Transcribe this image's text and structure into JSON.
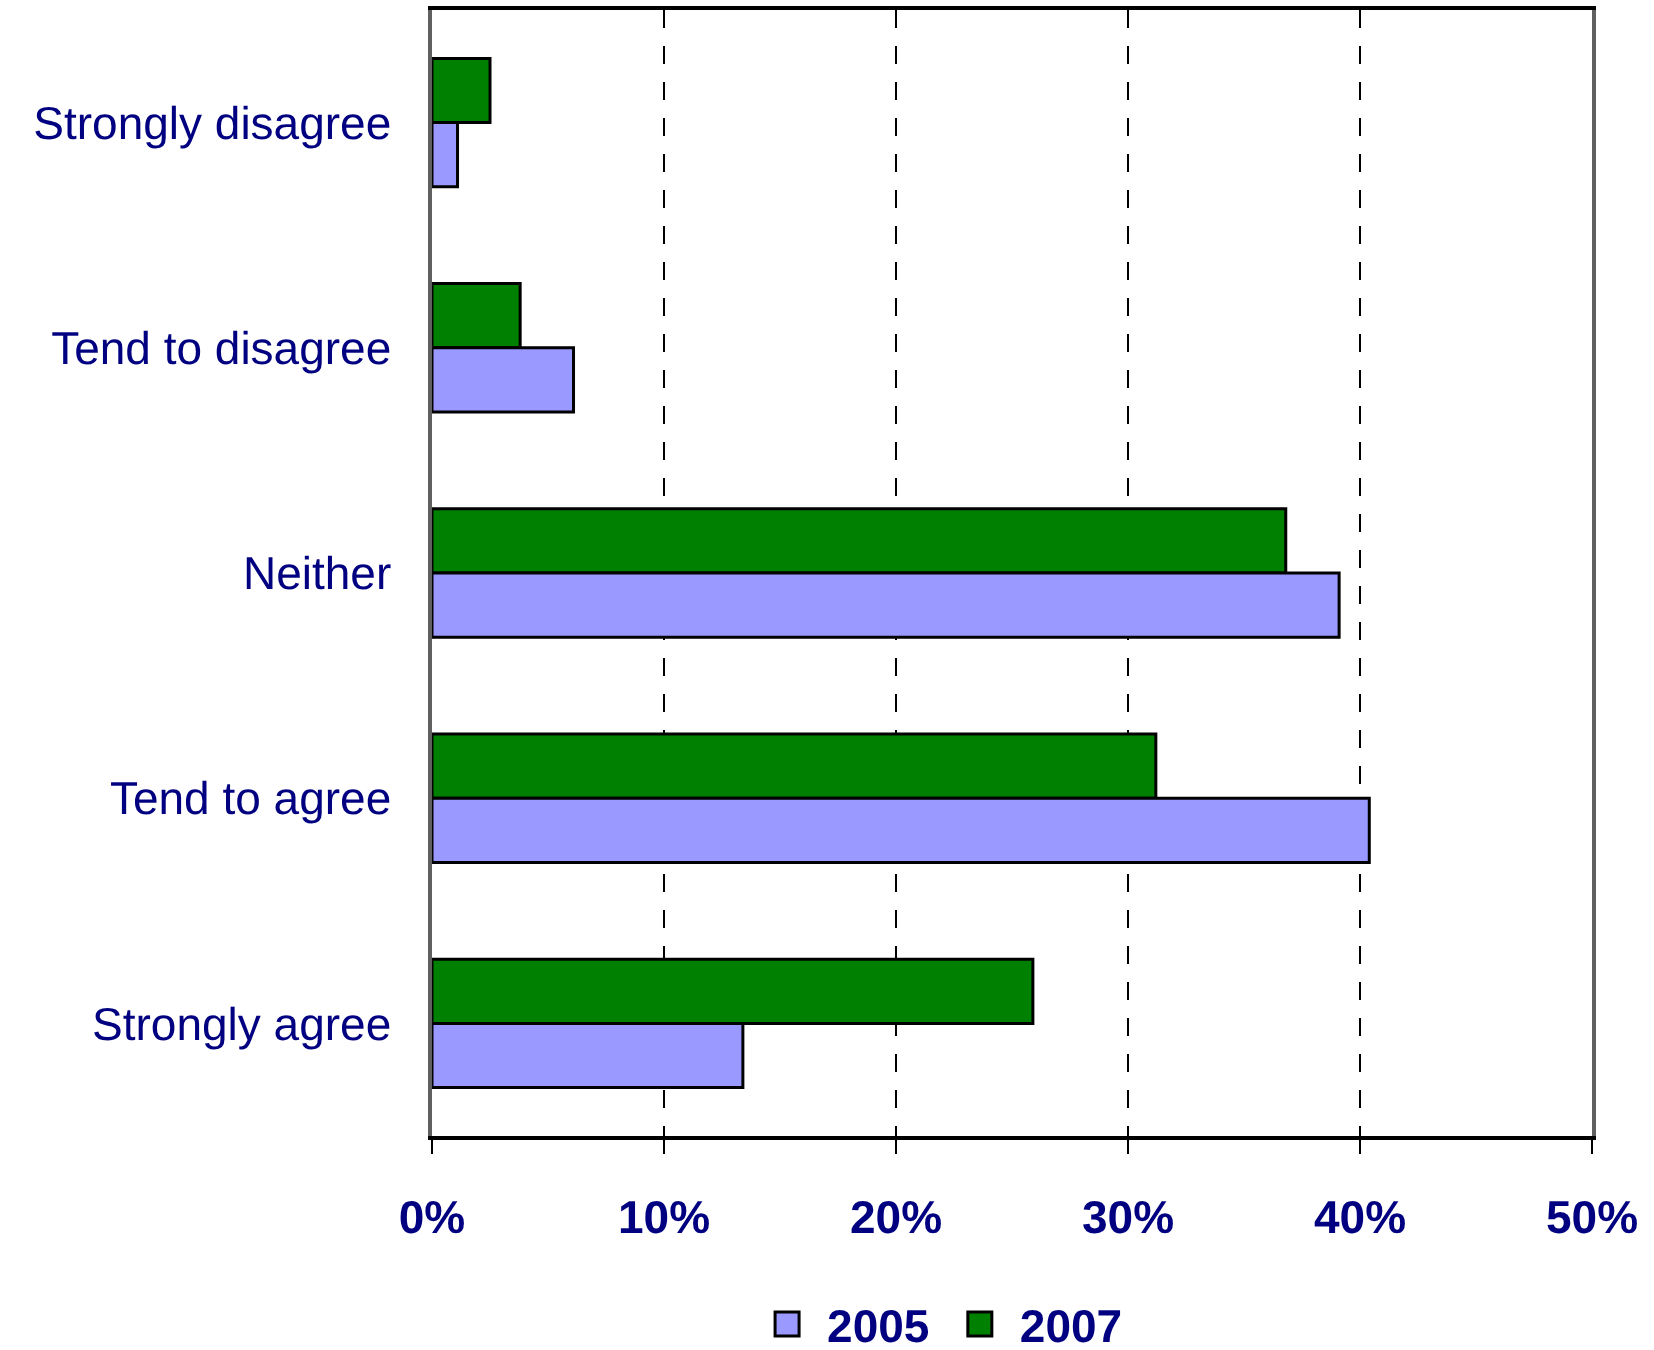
{
  "chart_data": {
    "type": "bar",
    "orientation": "horizontal",
    "categories": [
      "Strongly disagree",
      "Tend to disagree",
      "Neither",
      "Tend to agree",
      "Strongly agree"
    ],
    "series": [
      {
        "name": "2005",
        "color": "#9999ff",
        "values": [
          1.1,
          6.1,
          39.1,
          40.4,
          13.4
        ]
      },
      {
        "name": "2007",
        "color": "#008000",
        "values": [
          2.5,
          3.8,
          36.8,
          31.2,
          25.9
        ]
      }
    ],
    "xlim": [
      0,
      50
    ],
    "xticks": [
      {
        "value": 0,
        "label": "0%"
      },
      {
        "value": 10,
        "label": "10%"
      },
      {
        "value": 20,
        "label": "20%"
      },
      {
        "value": 30,
        "label": "30%"
      },
      {
        "value": 40,
        "label": "40%"
      },
      {
        "value": 50,
        "label": "50%"
      }
    ],
    "grid": "x",
    "legend": "bottom"
  }
}
